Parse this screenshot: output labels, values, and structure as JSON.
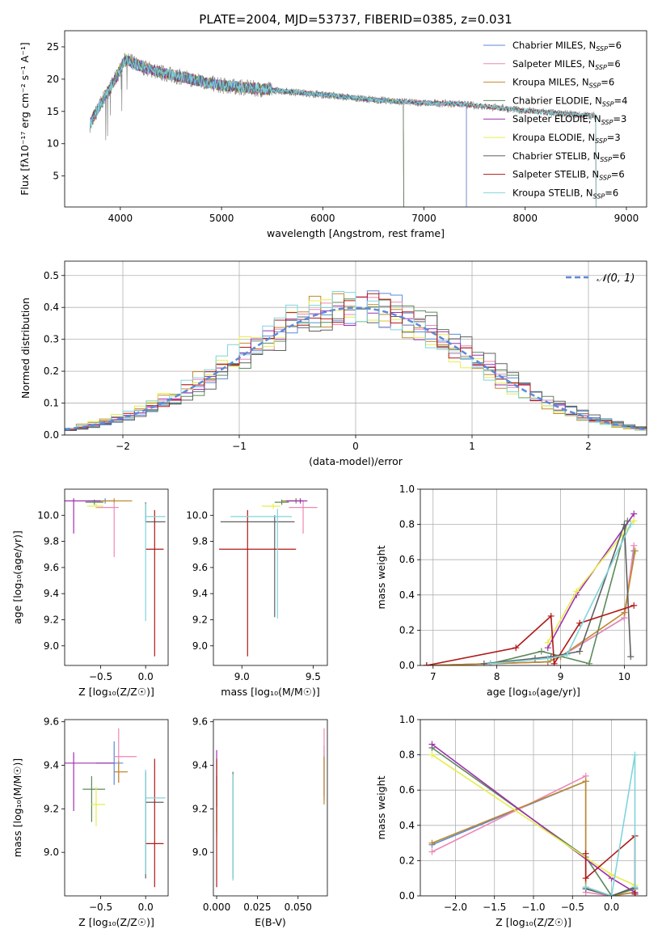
{
  "title": "PLATE=2004, MJD=53737, FIBERID=0385, z=0.031",
  "colors": [
    "#5b8ad8",
    "#ee87b6",
    "#bf8a2a",
    "#5c8a5a",
    "#a030b0",
    "#e6ee4a",
    "#606060",
    "#b01818",
    "#80d4dc"
  ],
  "chart_data": [
    {
      "id": "spectrum",
      "type": "line",
      "title": "PLATE=2004, MJD=53737, FIBERID=0385, z=0.031",
      "xlabel": "wavelength [Angstrom, rest frame]",
      "ylabel": "Flux [fλ10⁻¹⁷ erg cm⁻² s⁻¹ A⁻¹]",
      "xlim": [
        3450,
        9200
      ],
      "ylim": [
        0.2,
        27.5
      ],
      "xticks": [
        4000,
        5000,
        6000,
        7000,
        8000,
        9000
      ],
      "yticks": [
        5,
        10,
        15,
        20,
        25
      ],
      "legend": "top-right",
      "series": [
        {
          "name": "Chabrier MILES, N_SSP=6",
          "range": [
            3700,
            7420
          ]
        },
        {
          "name": "Salpeter MILES, N_SSP=6",
          "range": [
            3700,
            7420
          ]
        },
        {
          "name": "Kroupa MILES, N_SSP=6",
          "range": [
            3700,
            7420
          ]
        },
        {
          "name": "Chabrier ELODIE, N_SSP=4",
          "range": [
            3700,
            6800
          ]
        },
        {
          "name": "Salpeter ELODIE, N_SSP=3",
          "range": [
            3700,
            6800
          ]
        },
        {
          "name": "Kroupa ELODIE, N_SSP=3",
          "range": [
            3700,
            6800
          ]
        },
        {
          "name": "Chabrier STELIB, N_SSP=6",
          "range": [
            3700,
            8700
          ]
        },
        {
          "name": "Salpeter STELIB, N_SSP=6",
          "range": [
            3700,
            8700
          ]
        },
        {
          "name": "Kroupa STELIB, N_SSP=6",
          "range": [
            3700,
            8700
          ]
        }
      ],
      "continuum": {
        "x": [
          3700,
          3800,
          3950,
          4050,
          4200,
          4400,
          4700,
          5000,
          5500,
          6000,
          6500,
          7000,
          7300,
          7600,
          8000,
          8500,
          8700
        ],
        "y": [
          13,
          16,
          20,
          23,
          22,
          21,
          20,
          19,
          18.3,
          17.6,
          16.8,
          16.3,
          16.2,
          15.8,
          15.1,
          14.5,
          14.3
        ]
      }
    },
    {
      "id": "histogram",
      "type": "histogram",
      "xlabel": "(data-model)/error",
      "ylabel": "Normed distribution",
      "xlim": [
        -2.5,
        2.5
      ],
      "ylim": [
        0,
        0.545
      ],
      "xticks": [
        -2,
        -1,
        0,
        1,
        2
      ],
      "yticks": [
        0.0,
        0.1,
        0.2,
        0.3,
        0.4,
        0.5
      ],
      "legend": "top-right",
      "reference": {
        "name": "$\\mathcal{N}(0,1)$",
        "label_text": "𝒩(0, 1)",
        "mu": 0,
        "sigma": 1
      },
      "bin_width": 0.1
    },
    {
      "id": "age_vs_Z",
      "type": "errorbar",
      "xlabel": "Z [log₁₀(Z/Z☉)]",
      "ylabel": "age  [log₁₀(age/yr)]",
      "xlim": [
        -0.9,
        0.25
      ],
      "ylim": [
        8.85,
        10.2
      ],
      "xticks": [
        -0.5,
        0.0
      ],
      "yticks": [
        9.0,
        9.2,
        9.4,
        9.6,
        9.8,
        10.0
      ],
      "points": [
        {
          "x": -0.45,
          "y": 10.11,
          "xerr": [
            0.2,
            0.1
          ],
          "yerr": [
            0.02,
            0.02
          ]
        },
        {
          "x": -0.35,
          "y": 10.06,
          "xerr": [
            0.2,
            0.05
          ],
          "yerr": [
            0.38,
            0.05
          ]
        },
        {
          "x": -0.35,
          "y": 10.11,
          "xerr": [
            0.2,
            0.2
          ],
          "yerr": [
            0.01,
            0.02
          ]
        },
        {
          "x": -0.57,
          "y": 10.1,
          "xerr": [
            0.1,
            0.1
          ],
          "yerr": [
            0.02,
            0.02
          ]
        },
        {
          "x": -0.8,
          "y": 10.11,
          "xerr": [
            0.2,
            0.3
          ],
          "yerr": [
            0.25,
            0.02
          ]
        },
        {
          "x": -0.55,
          "y": 10.07,
          "xerr": [
            0.1,
            0.08
          ],
          "yerr": [
            0.02,
            0.02
          ]
        },
        {
          "x": 0.0,
          "y": 9.95,
          "xerr": [
            0.0,
            0.22
          ],
          "yerr": [
            0.0,
            0.15
          ]
        },
        {
          "x": 0.1,
          "y": 9.74,
          "xerr": [
            0.1,
            0.1
          ],
          "yerr": [
            0.82,
            0.3
          ]
        },
        {
          "x": 0.0,
          "y": 9.99,
          "xerr": [
            0.0,
            0.22
          ],
          "yerr": [
            0.8,
            0.1
          ]
        }
      ]
    },
    {
      "id": "age_vs_mass",
      "type": "errorbar",
      "xlabel": "mass [log₁₀(M/M☉)]",
      "ylabel": "",
      "xlim": [
        8.8,
        9.6
      ],
      "ylim": [
        8.85,
        10.2
      ],
      "xticks": [
        9.0,
        9.5
      ],
      "yticks": [
        9.0,
        9.2,
        9.4,
        9.6,
        9.8,
        10.0
      ],
      "points": [
        {
          "x": 9.38,
          "y": 10.11,
          "xerr": [
            0.05,
            0.05
          ],
          "yerr": [
            0.02,
            0.02
          ]
        },
        {
          "x": 9.43,
          "y": 10.06,
          "xerr": [
            0.1,
            0.1
          ],
          "yerr": [
            0.2,
            0.05
          ]
        },
        {
          "x": 9.38,
          "y": 10.11,
          "xerr": [
            0.1,
            0.05
          ],
          "yerr": [
            0.01,
            0.02
          ]
        },
        {
          "x": 9.28,
          "y": 10.1,
          "xerr": [
            0.05,
            0.05
          ],
          "yerr": [
            0.02,
            0.02
          ]
        },
        {
          "x": 9.41,
          "y": 10.11,
          "xerr": [
            0.1,
            0.05
          ],
          "yerr": [
            0.02,
            0.02
          ]
        },
        {
          "x": 9.22,
          "y": 10.07,
          "xerr": [
            0.08,
            0.05
          ],
          "yerr": [
            0.02,
            0.02
          ]
        },
        {
          "x": 9.23,
          "y": 9.95,
          "xerr": [
            0.38,
            0.14
          ],
          "yerr": [
            0.73,
            0.05
          ]
        },
        {
          "x": 9.04,
          "y": 9.74,
          "xerr": [
            0.2,
            0.34
          ],
          "yerr": [
            0.82,
            0.3
          ]
        },
        {
          "x": 9.25,
          "y": 9.99,
          "xerr": [
            0.33,
            0.1
          ],
          "yerr": [
            0.78,
            0.06
          ]
        }
      ]
    },
    {
      "id": "weight_vs_age",
      "type": "line",
      "xlabel": "age  [log₁₀(age/yr)]",
      "ylabel": "mass weight",
      "xlim": [
        6.8,
        10.35
      ],
      "ylim": [
        0,
        1.0
      ],
      "xticks": [
        7,
        8,
        9,
        10
      ],
      "yticks": [
        0.0,
        0.2,
        0.4,
        0.6,
        0.8,
        1.0
      ],
      "series": [
        {
          "x": [
            6.9,
            7.9,
            8.8,
            9.0,
            10.0,
            10.15
          ],
          "y": [
            0.0,
            0.01,
            0.02,
            0.05,
            0.27,
            0.65
          ]
        },
        {
          "x": [
            6.9,
            7.9,
            8.8,
            9.0,
            10.0,
            10.15
          ],
          "y": [
            0.0,
            0.01,
            0.02,
            0.05,
            0.27,
            0.68
          ]
        },
        {
          "x": [
            6.9,
            7.9,
            8.8,
            9.0,
            10.0,
            10.17
          ],
          "y": [
            0.0,
            0.01,
            0.02,
            0.05,
            0.3,
            0.65
          ]
        },
        {
          "x": [
            7.9,
            8.7,
            9.45,
            10.05
          ],
          "y": [
            0.01,
            0.08,
            0.01,
            0.82
          ]
        },
        {
          "x": [
            8.8,
            9.25,
            10.15
          ],
          "y": [
            0.1,
            0.4,
            0.86
          ]
        },
        {
          "x": [
            8.8,
            9.25,
            10.15
          ],
          "y": [
            0.13,
            0.42,
            0.82
          ]
        },
        {
          "x": [
            7.8,
            8.6,
            8.85,
            9.3,
            10.0,
            10.1
          ],
          "y": [
            0.01,
            0.04,
            0.05,
            0.08,
            0.8,
            0.05
          ]
        },
        {
          "x": [
            6.9,
            8.3,
            8.85,
            8.9,
            9.3,
            10.15
          ],
          "y": [
            0.0,
            0.1,
            0.28,
            0.01,
            0.24,
            0.34
          ]
        },
        {
          "x": [
            7.9,
            8.8,
            9.1,
            10.1
          ],
          "y": [
            0.01,
            0.04,
            0.06,
            0.8
          ]
        }
      ]
    },
    {
      "id": "mass_vs_Z",
      "type": "errorbar",
      "xlabel": "Z [log₁₀(Z/Z☉)]",
      "ylabel": "mass [log₁₀(M/M☉)]",
      "xlim": [
        -0.9,
        0.25
      ],
      "ylim": [
        8.8,
        9.61
      ],
      "xticks": [
        -0.5,
        0.0
      ],
      "yticks": [
        9.0,
        9.2,
        9.4,
        9.6
      ],
      "points": [
        {
          "x": -0.35,
          "y": 9.41,
          "xerr": [
            0.2,
            0.1
          ],
          "yerr": [
            0.1,
            0.1
          ]
        },
        {
          "x": -0.3,
          "y": 9.44,
          "xerr": [
            0.05,
            0.2
          ],
          "yerr": [
            0.12,
            0.13
          ]
        },
        {
          "x": -0.3,
          "y": 9.37,
          "xerr": [
            0.05,
            0.1
          ],
          "yerr": [
            0.05,
            0.05
          ]
        },
        {
          "x": -0.6,
          "y": 9.29,
          "xerr": [
            0.1,
            0.15
          ],
          "yerr": [
            0.15,
            0.06
          ]
        },
        {
          "x": -0.8,
          "y": 9.41,
          "xerr": [
            0.1,
            0.45
          ],
          "yerr": [
            0.22,
            0.05
          ]
        },
        {
          "x": -0.55,
          "y": 9.22,
          "xerr": [
            0.05,
            0.1
          ],
          "yerr": [
            0.1,
            0.08
          ]
        },
        {
          "x": 0.0,
          "y": 9.23,
          "xerr": [
            0.0,
            0.2
          ],
          "yerr": [
            0.35,
            0.14
          ]
        },
        {
          "x": 0.1,
          "y": 9.04,
          "xerr": [
            0.1,
            0.1
          ],
          "yerr": [
            0.2,
            0.39
          ]
        },
        {
          "x": 0.0,
          "y": 9.25,
          "xerr": [
            0.0,
            0.22
          ],
          "yerr": [
            0.35,
            0.13
          ]
        }
      ]
    },
    {
      "id": "mass_vs_EBV",
      "type": "errorbar",
      "xlabel": "E(B-V)",
      "ylabel": "",
      "xlim": [
        -0.002,
        0.068
      ],
      "ylim": [
        8.8,
        9.61
      ],
      "xticks": [
        0.0,
        0.025,
        0.05
      ],
      "xticklabels": [
        "0.000",
        "0.025",
        "0.050"
      ],
      "yticks": [
        9.0,
        9.2,
        9.4,
        9.6
      ],
      "points": [
        {
          "x": 0.066,
          "y": 9.41,
          "yerr": [
            0.15,
            0.08
          ]
        },
        {
          "x": 0.066,
          "y": 9.44,
          "yerr": [
            0.2,
            0.13
          ]
        },
        {
          "x": 0.066,
          "y": 9.37,
          "yerr": [
            0.15,
            0.07
          ]
        },
        {
          "x": 0.0,
          "y": 9.29,
          "yerr": [
            0.2,
            0.06
          ]
        },
        {
          "x": 0.0,
          "y": 9.41,
          "yerr": [
            0.2,
            0.06
          ]
        },
        {
          "x": 0.0,
          "y": 9.22,
          "yerr": [
            0.15,
            0.1
          ]
        },
        {
          "x": 0.01,
          "y": 9.23,
          "yerr": [
            0.35,
            0.14
          ]
        },
        {
          "x": 0.0,
          "y": 9.04,
          "yerr": [
            0.2,
            0.39
          ]
        },
        {
          "x": 0.01,
          "y": 9.25,
          "yerr": [
            0.38,
            0.11
          ]
        }
      ]
    },
    {
      "id": "weight_vs_Z",
      "type": "line",
      "xlabel": "Z [log₁₀(Z/Z☉)]",
      "ylabel": "mass weight",
      "xlim": [
        -2.45,
        0.45
      ],
      "ylim": [
        0,
        1.0
      ],
      "xticks": [
        -2.0,
        -1.5,
        -1.0,
        -0.5,
        0.0
      ],
      "yticks": [
        0.0,
        0.2,
        0.4,
        0.6,
        0.8,
        1.0
      ],
      "series": [
        {
          "x": [
            -2.3,
            -0.33,
            -0.33,
            0.0,
            0.3
          ],
          "y": [
            0.29,
            0.65,
            0.04,
            0.0,
            0.02
          ]
        },
        {
          "x": [
            -2.3,
            -0.33,
            -0.33,
            0.0,
            0.3
          ],
          "y": [
            0.25,
            0.68,
            0.02,
            0.0,
            0.02
          ]
        },
        {
          "x": [
            -2.3,
            -0.33,
            -0.33,
            0.0,
            0.3
          ],
          "y": [
            0.3,
            0.65,
            0.05,
            0.0,
            0.02
          ]
        },
        {
          "x": [
            -2.3,
            -0.33,
            0.0,
            0.3
          ],
          "y": [
            0.84,
            0.22,
            0.0,
            0.04
          ]
        },
        {
          "x": [
            -2.3,
            0.0,
            0.3
          ],
          "y": [
            0.86,
            0.1,
            0.02
          ]
        },
        {
          "x": [
            -2.3,
            0.0,
            0.3
          ],
          "y": [
            0.8,
            0.12,
            0.06
          ]
        },
        {
          "x": [
            -0.33,
            0.0,
            0.3,
            0.3
          ],
          "y": [
            0.04,
            0.0,
            0.05,
            0.01
          ]
        },
        {
          "x": [
            -0.33,
            -0.33,
            0.3,
            0.3
          ],
          "y": [
            0.24,
            0.1,
            0.34,
            0.01
          ]
        },
        {
          "x": [
            -0.33,
            0.0,
            0.3,
            0.3
          ],
          "y": [
            0.05,
            0.0,
            0.8,
            0.05
          ]
        }
      ]
    }
  ]
}
